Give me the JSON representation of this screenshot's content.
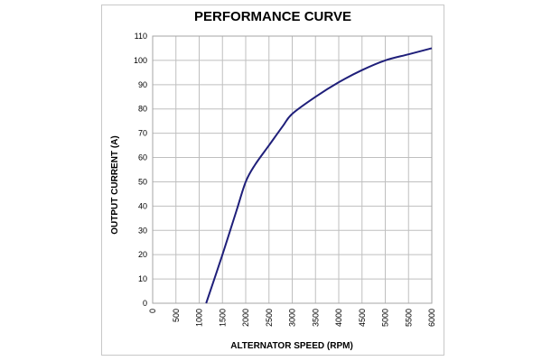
{
  "chart_data": {
    "type": "line",
    "title": "PERFORMANCE CURVE",
    "xlabel": "ALTERNATOR SPEED (RPM)",
    "ylabel": "OUTPUT CURRENT (A)",
    "xlim": [
      0,
      6000
    ],
    "ylim": [
      0,
      110
    ],
    "x_ticks": [
      0,
      500,
      1000,
      1500,
      2000,
      2500,
      3000,
      3500,
      4000,
      4500,
      5000,
      5500,
      6000
    ],
    "y_ticks": [
      0,
      10,
      20,
      30,
      40,
      50,
      60,
      70,
      80,
      90,
      100,
      110
    ],
    "grid": true,
    "line_color": "#1f1f7a",
    "series": [
      {
        "x": [
          1150,
          1500,
          1800,
          2000,
          2200,
          2500,
          2800,
          3000,
          3500,
          4000,
          4500,
          5000,
          5500,
          6000
        ],
        "values": [
          0,
          20,
          38,
          50,
          57,
          65,
          73,
          78,
          85,
          91,
          96,
          100,
          102.5,
          105
        ]
      }
    ]
  }
}
